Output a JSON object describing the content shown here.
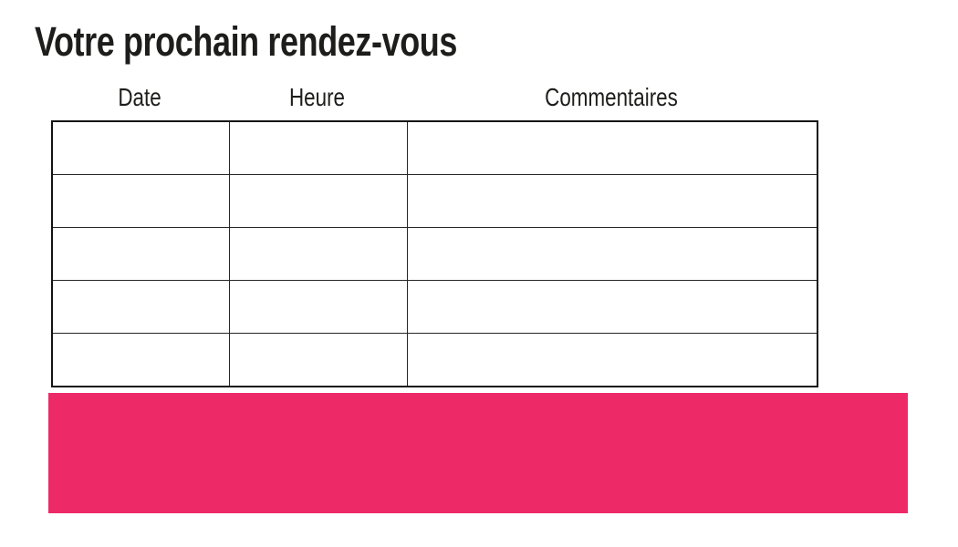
{
  "document": {
    "title": "Votre prochain rendez-vous"
  },
  "appointment_table": {
    "headers": [
      "Date",
      "Heure",
      "Commentaires"
    ],
    "rows": [
      [
        "",
        "",
        ""
      ],
      [
        "",
        "",
        ""
      ],
      [
        "",
        "",
        ""
      ],
      [
        "",
        "",
        ""
      ],
      [
        "",
        "",
        ""
      ]
    ]
  },
  "banner": {
    "color": "#ED2A67"
  },
  "colors": {
    "text": "#1D1D1B",
    "table_border_outer": "#141414",
    "table_border_inner": "#262626",
    "background": "#FFFFFF"
  }
}
